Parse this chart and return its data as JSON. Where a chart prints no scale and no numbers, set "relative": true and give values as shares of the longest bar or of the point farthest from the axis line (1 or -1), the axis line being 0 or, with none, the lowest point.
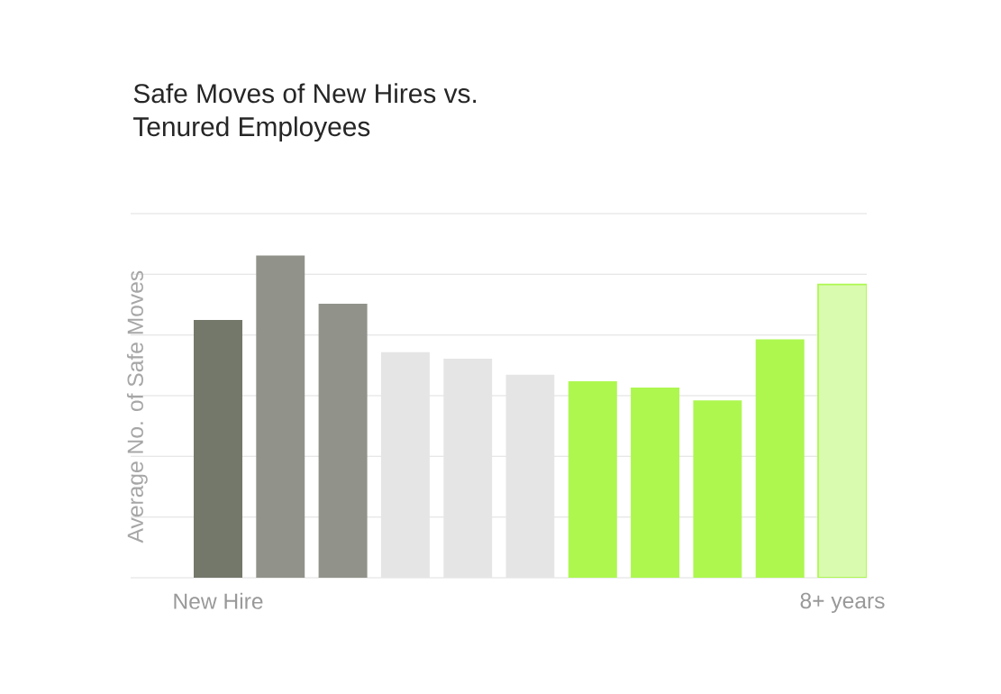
{
  "chart_data": {
    "type": "bar",
    "title": "Safe Moves of New Hires vs. Tenured Employees",
    "ylabel": "Average No. of Safe Moves",
    "categories": [
      "New Hire",
      null,
      null,
      null,
      null,
      null,
      null,
      null,
      null,
      null,
      "8+ years"
    ],
    "values": [
      0.8,
      1,
      0.85,
      0.7,
      0.68,
      0.63,
      0.61,
      0.59,
      0.55,
      0.74,
      0.91
    ],
    "colors": [
      "#74786a",
      "#91938a",
      "#91938a",
      "#e5e5e5",
      "#e5e5e5",
      "#e5e5e5",
      "#adf74f",
      "#adf74f",
      "#adf74f",
      "#adf74f",
      "#d9fbb0"
    ],
    "relative": true,
    "grid": "y"
  }
}
